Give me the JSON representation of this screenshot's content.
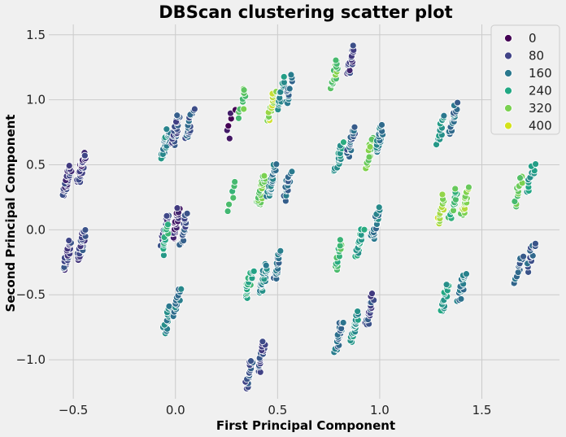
{
  "chart_data": {
    "type": "scatter",
    "title": "DBScan clustering scatter plot",
    "xlabel": "First Principal Component",
    "ylabel": "Second Principal Component",
    "xlim": [
      -0.62,
      1.88
    ],
    "ylim": [
      -1.3,
      1.58
    ],
    "xticks": [
      -0.5,
      0.0,
      0.5,
      1.0,
      1.5
    ],
    "yticks": [
      -1.0,
      -0.5,
      0.0,
      0.5,
      1.0,
      1.5
    ],
    "xtick_labels": [
      "−0.5",
      "0.0",
      "0.5",
      "1.0",
      "1.5"
    ],
    "ytick_labels": [
      "−1.0",
      "−0.5",
      "0.0",
      "0.5",
      "1.0",
      "1.5"
    ],
    "grid": true,
    "legend_position": "top-right",
    "legend": [
      {
        "label": "0",
        "color": "#440154"
      },
      {
        "label": "80",
        "color": "#414487"
      },
      {
        "label": "160",
        "color": "#2a788e"
      },
      {
        "label": "240",
        "color": "#22a884"
      },
      {
        "label": "320",
        "color": "#7ad151"
      },
      {
        "label": "400",
        "color": "#d4e21a"
      }
    ],
    "colormap": "viridis",
    "hue_range": [
      0,
      440
    ],
    "clusters": [
      {
        "x": -0.53,
        "y": -0.2,
        "label": 90,
        "n": 30
      },
      {
        "x": -0.46,
        "y": -0.12,
        "label": 100,
        "n": 30
      },
      {
        "x": -0.53,
        "y": 0.38,
        "label": 80,
        "n": 30
      },
      {
        "x": -0.46,
        "y": 0.48,
        "label": 70,
        "n": 30
      },
      {
        "x": -0.05,
        "y": 0.0,
        "label": 90,
        "n": 20
      },
      {
        "x": 0.0,
        "y": 0.05,
        "label": 50,
        "n": 30
      },
      {
        "x": 0.04,
        "y": 0.0,
        "label": 110,
        "n": 20
      },
      {
        "x": -0.05,
        "y": -0.07,
        "label": 260,
        "n": 14
      },
      {
        "x": -0.05,
        "y": 0.66,
        "label": 200,
        "n": 20
      },
      {
        "x": 0.0,
        "y": 0.76,
        "label": 110,
        "n": 30
      },
      {
        "x": 0.07,
        "y": 0.8,
        "label": 130,
        "n": 20
      },
      {
        "x": -0.04,
        "y": -0.68,
        "label": 190,
        "n": 16
      },
      {
        "x": 0.01,
        "y": -0.55,
        "label": 180,
        "n": 16
      },
      {
        "x": 0.27,
        "y": 0.82,
        "label": 10,
        "n": 6
      },
      {
        "x": 0.33,
        "y": 0.98,
        "label": 320,
        "n": 10
      },
      {
        "x": 0.28,
        "y": 0.27,
        "label": 300,
        "n": 6
      },
      {
        "x": 0.42,
        "y": 0.3,
        "label": 340,
        "n": 30
      },
      {
        "x": 0.47,
        "y": 0.38,
        "label": 180,
        "n": 30
      },
      {
        "x": 0.55,
        "y": 0.35,
        "label": 150,
        "n": 20
      },
      {
        "x": 0.47,
        "y": 0.96,
        "label": 380,
        "n": 20
      },
      {
        "x": 0.52,
        "y": 1.05,
        "label": 220,
        "n": 16
      },
      {
        "x": 0.56,
        "y": 1.08,
        "label": 160,
        "n": 16
      },
      {
        "x": 0.36,
        "y": -0.42,
        "label": 260,
        "n": 20
      },
      {
        "x": 0.43,
        "y": -0.38,
        "label": 200,
        "n": 30
      },
      {
        "x": 0.5,
        "y": -0.28,
        "label": 160,
        "n": 20
      },
      {
        "x": 0.36,
        "y": -1.1,
        "label": 110,
        "n": 20
      },
      {
        "x": 0.42,
        "y": -0.98,
        "label": 90,
        "n": 20
      },
      {
        "x": 0.78,
        "y": 1.2,
        "label": 330,
        "n": 16
      },
      {
        "x": 0.86,
        "y": 1.3,
        "label": 80,
        "n": 20
      },
      {
        "x": 0.8,
        "y": 0.55,
        "label": 240,
        "n": 16
      },
      {
        "x": 0.86,
        "y": 0.68,
        "label": 140,
        "n": 20
      },
      {
        "x": 0.95,
        "y": 0.6,
        "label": 330,
        "n": 16
      },
      {
        "x": 1.0,
        "y": 0.7,
        "label": 180,
        "n": 20
      },
      {
        "x": 0.8,
        "y": -0.2,
        "label": 300,
        "n": 16
      },
      {
        "x": 0.9,
        "y": -0.1,
        "label": 250,
        "n": 20
      },
      {
        "x": 0.98,
        "y": 0.05,
        "label": 180,
        "n": 20
      },
      {
        "x": 0.8,
        "y": -0.82,
        "label": 160,
        "n": 20
      },
      {
        "x": 0.88,
        "y": -0.75,
        "label": 220,
        "n": 20
      },
      {
        "x": 0.95,
        "y": -0.62,
        "label": 100,
        "n": 20
      },
      {
        "x": 1.3,
        "y": 0.15,
        "label": 380,
        "n": 16
      },
      {
        "x": 1.36,
        "y": 0.2,
        "label": 300,
        "n": 16
      },
      {
        "x": 1.42,
        "y": 0.22,
        "label": 360,
        "n": 20
      },
      {
        "x": 1.3,
        "y": 0.78,
        "label": 210,
        "n": 16
      },
      {
        "x": 1.36,
        "y": 0.85,
        "label": 160,
        "n": 20
      },
      {
        "x": 1.32,
        "y": -0.52,
        "label": 240,
        "n": 16
      },
      {
        "x": 1.4,
        "y": -0.45,
        "label": 180,
        "n": 20
      },
      {
        "x": 1.68,
        "y": -0.3,
        "label": 150,
        "n": 14
      },
      {
        "x": 1.74,
        "y": -0.2,
        "label": 130,
        "n": 14
      },
      {
        "x": 1.68,
        "y": 0.3,
        "label": 330,
        "n": 12
      },
      {
        "x": 1.74,
        "y": 0.4,
        "label": 240,
        "n": 12
      }
    ]
  }
}
